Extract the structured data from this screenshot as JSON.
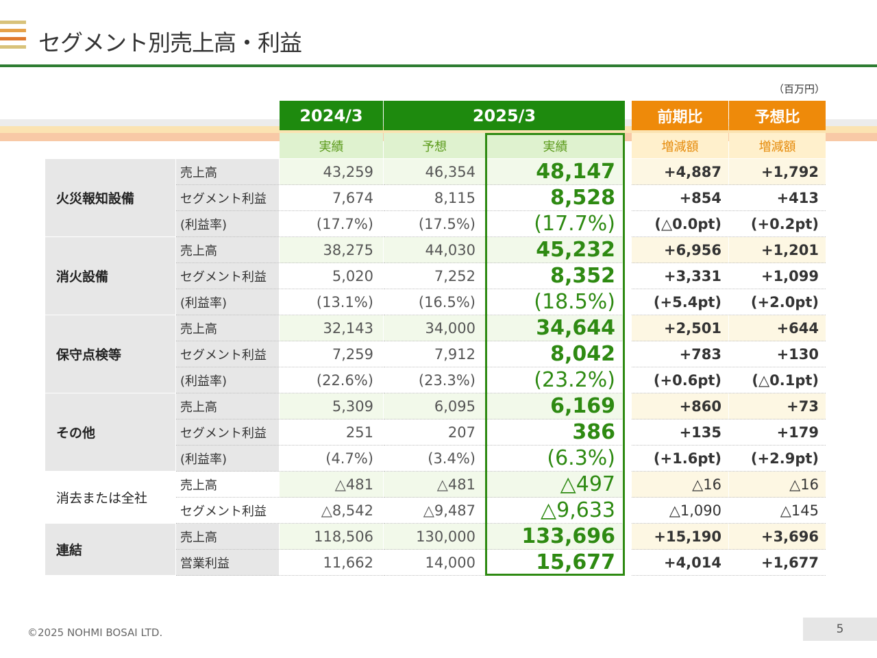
{
  "title": "セグメント別売上高・利益",
  "unit": "（百万円）",
  "footer": "©2025 NOHMI BOSAI LTD.",
  "page_number": "5",
  "colors": {
    "green": "#1e8a0e",
    "orange": "#ee8a0a",
    "actual_text": "#2e8a12"
  },
  "headers": {
    "year1": "2024/3",
    "year2": "2025/3",
    "cmp1": "前期比",
    "cmp2": "予想比",
    "sub_actual_prev": "実績",
    "sub_forecast": "予想",
    "sub_actual": "実績",
    "sub_diff1": "増減額",
    "sub_diff2": "増減額"
  },
  "segments": [
    {
      "name": "火災報知設備",
      "rows": [
        {
          "label": "売上高",
          "prev": "43,259",
          "forecast": "46,354",
          "actual": "48,147",
          "yoy": "+4,887",
          "vs_forecast": "+1,792"
        },
        {
          "label": "セグメント利益",
          "prev": "7,674",
          "forecast": "8,115",
          "actual": "8,528",
          "yoy": "+854",
          "vs_forecast": "+413"
        },
        {
          "label": "(利益率)",
          "prev": "(17.7%)",
          "forecast": "(17.5%)",
          "actual": "(17.7%)",
          "yoy": "(△0.0pt)",
          "vs_forecast": "(+0.2pt)"
        }
      ]
    },
    {
      "name": "消火設備",
      "rows": [
        {
          "label": "売上高",
          "prev": "38,275",
          "forecast": "44,030",
          "actual": "45,232",
          "yoy": "+6,956",
          "vs_forecast": "+1,201"
        },
        {
          "label": "セグメント利益",
          "prev": "5,020",
          "forecast": "7,252",
          "actual": "8,352",
          "yoy": "+3,331",
          "vs_forecast": "+1,099"
        },
        {
          "label": "(利益率)",
          "prev": "(13.1%)",
          "forecast": "(16.5%)",
          "actual": "(18.5%)",
          "yoy": "(+5.4pt)",
          "vs_forecast": "(+2.0pt)"
        }
      ]
    },
    {
      "name": "保守点検等",
      "rows": [
        {
          "label": "売上高",
          "prev": "32,143",
          "forecast": "34,000",
          "actual": "34,644",
          "yoy": "+2,501",
          "vs_forecast": "+644"
        },
        {
          "label": "セグメント利益",
          "prev": "7,259",
          "forecast": "7,912",
          "actual": "8,042",
          "yoy": "+783",
          "vs_forecast": "+130"
        },
        {
          "label": "(利益率)",
          "prev": "(22.6%)",
          "forecast": "(23.3%)",
          "actual": "(23.2%)",
          "yoy": "(+0.6pt)",
          "vs_forecast": "(△0.1pt)"
        }
      ]
    },
    {
      "name": "その他",
      "rows": [
        {
          "label": "売上高",
          "prev": "5,309",
          "forecast": "6,095",
          "actual": "6,169",
          "yoy": "+860",
          "vs_forecast": "+73"
        },
        {
          "label": "セグメント利益",
          "prev": "251",
          "forecast": "207",
          "actual": "386",
          "yoy": "+135",
          "vs_forecast": "+179"
        },
        {
          "label": "(利益率)",
          "prev": "(4.7%)",
          "forecast": "(3.4%)",
          "actual": "(6.3%)",
          "yoy": "(+1.6pt)",
          "vs_forecast": "(+2.9pt)"
        }
      ]
    },
    {
      "name": "消去または全社",
      "rows": [
        {
          "label": "売上高",
          "prev": "△481",
          "forecast": "△481",
          "actual": "△497",
          "yoy": "△16",
          "vs_forecast": "△16"
        },
        {
          "label": "セグメント利益",
          "prev": "△8,542",
          "forecast": "△9,487",
          "actual": "△9,633",
          "yoy": "△1,090",
          "vs_forecast": "△145"
        }
      ]
    },
    {
      "name": "連結",
      "rows": [
        {
          "label": "売上高",
          "prev": "118,506",
          "forecast": "130,000",
          "actual": "133,696",
          "yoy": "+15,190",
          "vs_forecast": "+3,696"
        },
        {
          "label": "営業利益",
          "prev": "11,662",
          "forecast": "14,000",
          "actual": "15,677",
          "yoy": "+4,014",
          "vs_forecast": "+1,677"
        }
      ]
    }
  ]
}
